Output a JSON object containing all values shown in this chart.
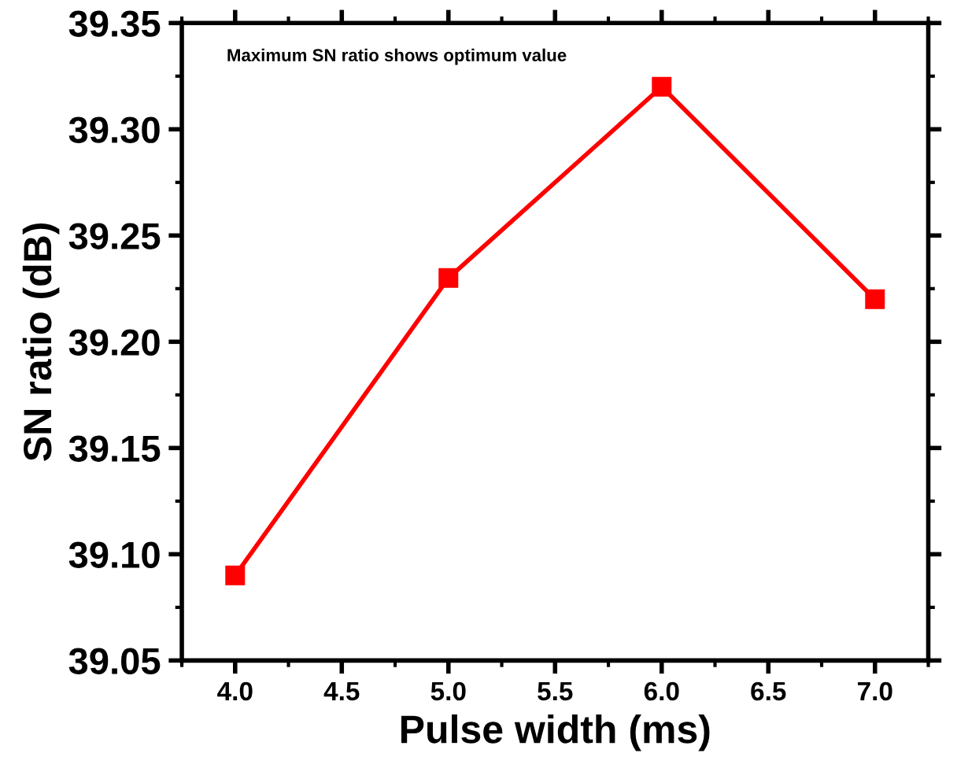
{
  "chart_data": {
    "type": "line",
    "xlabel": "Pulse width (ms)",
    "ylabel": "SN ratio (dB)",
    "annotations": [
      "Maximum SN ratio shows optimum value"
    ],
    "x": [
      4.0,
      5.0,
      6.0,
      7.0
    ],
    "series": [
      {
        "color": "#ff0000",
        "values": [
          39.09,
          39.23,
          39.32,
          39.22
        ]
      }
    ],
    "marker": "square",
    "line_style": "solid",
    "grid": false,
    "legend": false,
    "xlim": [
      3.75,
      7.25
    ],
    "xticks": [
      {
        "value": 4.0,
        "label": "4.0"
      },
      {
        "value": 4.5,
        "label": "4.5"
      },
      {
        "value": 5.0,
        "label": "5.0"
      },
      {
        "value": 5.5,
        "label": "5.5"
      },
      {
        "value": 6.0,
        "label": "6.0"
      },
      {
        "value": 6.5,
        "label": "6.5"
      },
      {
        "value": 7.0,
        "label": "7.0"
      }
    ],
    "ylim": [
      39.05,
      39.35
    ],
    "yticks": [
      39.05,
      {
        "value": 39.1,
        "label": "39.10"
      },
      39.15,
      {
        "value": 39.2,
        "label": "39.20"
      },
      39.25,
      {
        "value": 39.3,
        "label": "39.30"
      },
      39.35
    ]
  }
}
